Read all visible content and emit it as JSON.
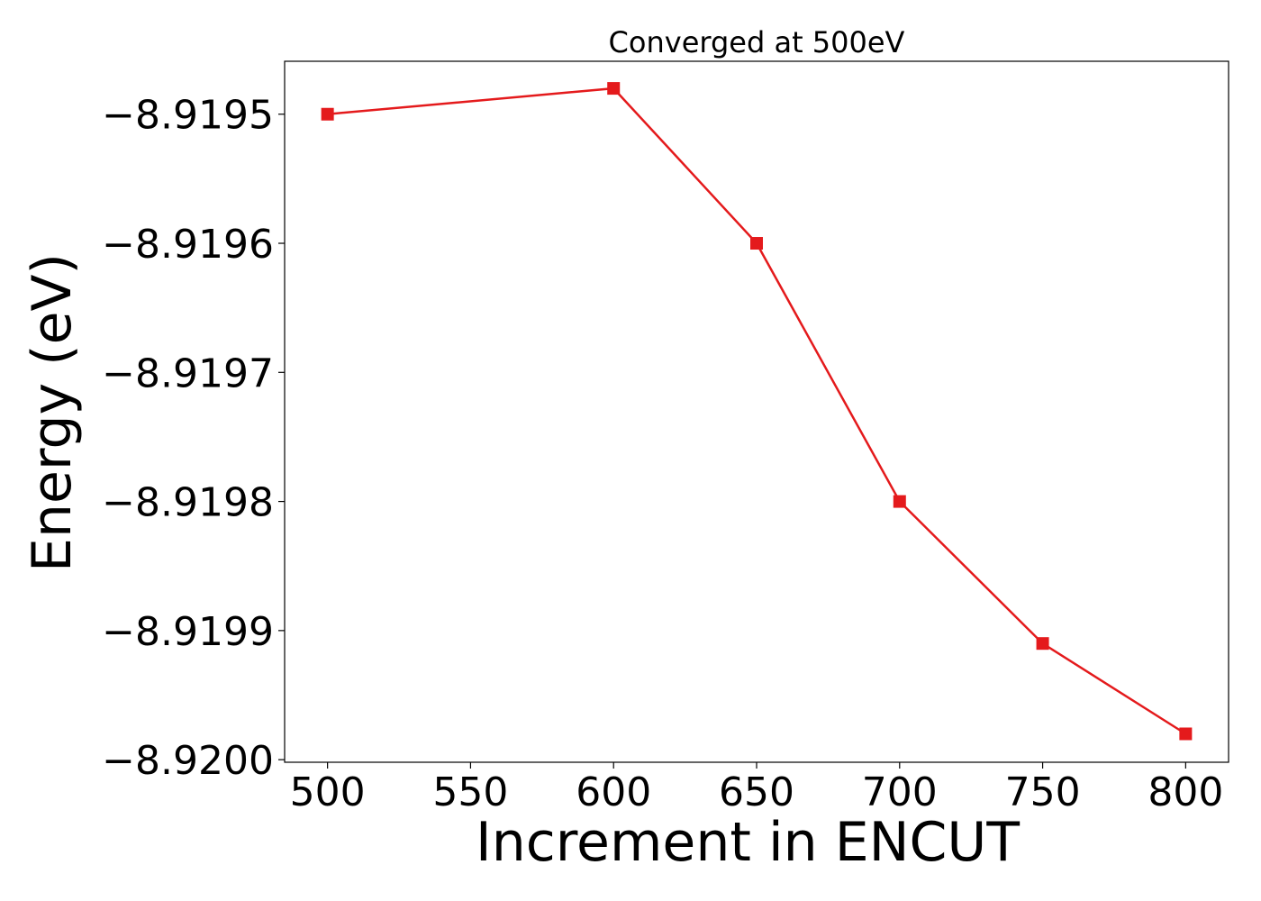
{
  "chart_data": {
    "type": "line",
    "title": "Converged at 500eV",
    "xlabel": "Increment in ENCUT",
    "ylabel": "Energy (eV)",
    "x": [
      500,
      600,
      650,
      700,
      750,
      800
    ],
    "series": [
      {
        "values": [
          -8.9195,
          -8.91948,
          -8.9196,
          -8.9198,
          -8.91991,
          -8.91998
        ],
        "color": "#e41a1c",
        "marker": "square"
      }
    ],
    "xticks": [
      500,
      550,
      600,
      650,
      700,
      750,
      800
    ],
    "xtick_labels": [
      "500",
      "550",
      "600",
      "650",
      "700",
      "750",
      "800"
    ],
    "yticks": [
      -8.9195,
      -8.9196,
      -8.9197,
      -8.9198,
      -8.9199,
      -8.92
    ],
    "ytick_labels": [
      "−8.9195",
      "−8.9196",
      "−8.9197",
      "−8.9198",
      "−8.9199",
      "−8.9200"
    ],
    "xlim": [
      485,
      815
    ],
    "ylim": [
      -8.920002,
      -8.919459
    ],
    "grid": false,
    "legend": "none"
  }
}
